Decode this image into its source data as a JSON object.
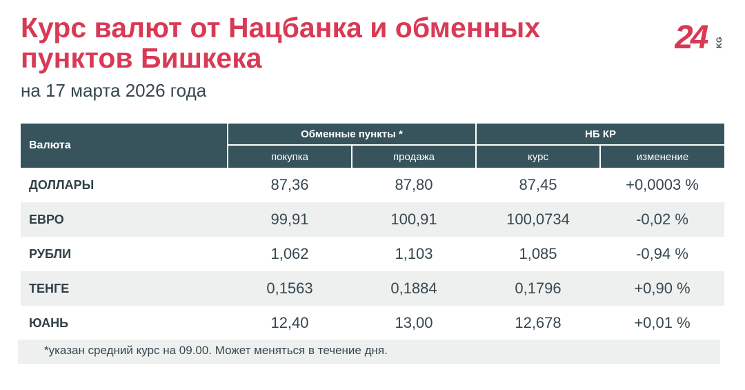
{
  "header": {
    "title": "Курс валют от Нацбанка и обменных пунктов Бишкека",
    "subtitle": "на 17 марта 2026 года",
    "logo_text": "24",
    "logo_suffix": "KG"
  },
  "table": {
    "currency_header": "Валюта",
    "exchange_group": "Обменные пункты *",
    "nb_group": "НБ КР",
    "col_buy": "покупка",
    "col_sell": "продажа",
    "col_rate": "курс",
    "col_change": "изменение",
    "rows": [
      {
        "currency": "ДОЛЛАРЫ",
        "buy": "87,36",
        "sell": "87,80",
        "rate": "87,45",
        "change": "+0,0003 %"
      },
      {
        "currency": "ЕВРО",
        "buy": "99,91",
        "sell": "100,91",
        "rate": "100,0734",
        "change": "-0,02 %"
      },
      {
        "currency": "РУБЛИ",
        "buy": "1,062",
        "sell": "1,103",
        "rate": "1,085",
        "change": "-0,94 %"
      },
      {
        "currency": "ТЕНГЕ",
        "buy": "0,1563",
        "sell": "0,1884",
        "rate": "0,1796",
        "change": "+0,90 %"
      },
      {
        "currency": "ЮАНЬ",
        "buy": "12,40",
        "sell": "13,00",
        "rate": "12,678",
        "change": "+0,01 %"
      }
    ]
  },
  "footnote": "*указан средний курс на 09.00. Может меняться в течение дня.",
  "colors": {
    "title": "#d83a56",
    "header_bg": "#37535c",
    "row_alt_bg": "#eef0f0",
    "text": "#36474f"
  }
}
